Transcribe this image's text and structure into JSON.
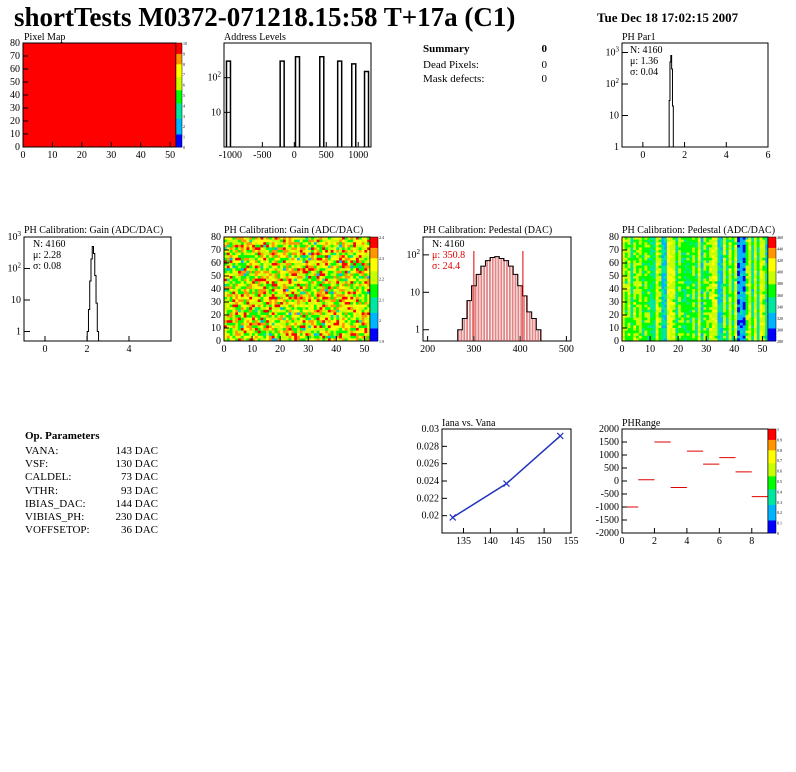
{
  "header": {
    "title": "shortTests M0372-071218.15:58 T+17a (C1)",
    "timestamp": "Tue Dec 18 17:02:15 2007"
  },
  "summary": {
    "label": "Summary",
    "value": "0",
    "rows": [
      {
        "label": "Dead Pixels:",
        "value": "0"
      },
      {
        "label": "Mask defects:",
        "value": "0"
      }
    ]
  },
  "op_parameters": {
    "title": "Op. Parameters",
    "rows": [
      {
        "label": "VANA:",
        "value": "143 DAC"
      },
      {
        "label": "VSF:",
        "value": "130 DAC"
      },
      {
        "label": "CALDEL:",
        "value": "73 DAC"
      },
      {
        "label": "VTHR:",
        "value": "93 DAC"
      },
      {
        "label": "IBIAS_DAC:",
        "value": "144 DAC"
      },
      {
        "label": "VIBIAS_PH:",
        "value": "230 DAC"
      },
      {
        "label": "VOFFSETOP:",
        "value": "36 DAC"
      }
    ]
  },
  "colors": {
    "histogram_line": "#000000",
    "fit_red": "#e00000",
    "iana_line": "#2233bb",
    "pixel_map_fill": "#ff0000"
  },
  "chart_data": [
    {
      "id": "pixel-map",
      "type": "heatmap",
      "title": "Pixel Map",
      "xlim": [
        0,
        52
      ],
      "ylim": [
        0,
        80
      ],
      "xticks": [
        "0",
        "10",
        "20",
        "30",
        "40",
        "50"
      ],
      "yticks": [
        "0",
        "10",
        "20",
        "30",
        "40",
        "50",
        "60",
        "70",
        "80"
      ],
      "zticks": [
        "0",
        "1",
        "2",
        "3",
        "4",
        "5",
        "6",
        "7",
        "8",
        "9",
        "10"
      ],
      "uniform_value": 10
    },
    {
      "id": "address-levels",
      "type": "bar",
      "title": "Address Levels",
      "xlim": [
        -1100,
        1200
      ],
      "log_y": true,
      "ylim": [
        1,
        1000
      ],
      "xticks": [
        "-1000",
        "-500",
        "0",
        "500",
        "1000"
      ],
      "yticks": [
        "10",
        "10^2"
      ],
      "peaks": [
        {
          "x": -1030,
          "value": 300
        },
        {
          "x": -190,
          "value": 300
        },
        {
          "x": 50,
          "value": 400
        },
        {
          "x": 430,
          "value": 400
        },
        {
          "x": 710,
          "value": 300
        },
        {
          "x": 930,
          "value": 250
        },
        {
          "x": 1130,
          "value": 150
        }
      ]
    },
    {
      "id": "ph-par1",
      "type": "bar",
      "title": "PH Par1",
      "xlim": [
        -1,
        6
      ],
      "log_y": true,
      "ylim": [
        1,
        2000
      ],
      "xticks": [
        "0",
        "2",
        "4",
        "6"
      ],
      "yticks": [
        "1",
        "10",
        "10^2",
        "10^3"
      ],
      "stats": {
        "entries": "N: 4160",
        "mean": "μ: 1.36",
        "sigma": "σ: 0.04"
      },
      "x": [
        1.24,
        1.28,
        1.32,
        1.36,
        1.4,
        1.44,
        1.48
      ],
      "values": [
        1,
        30,
        500,
        800,
        300,
        20,
        1
      ]
    },
    {
      "id": "gain-1d",
      "type": "bar",
      "title": "PH Calibration: Gain (ADC/DAC)",
      "xlim": [
        -1,
        6
      ],
      "log_y": true,
      "ylim": [
        0.5,
        1000
      ],
      "xticks": [
        "0",
        "2",
        "4"
      ],
      "yticks": [
        "1",
        "10",
        "10^2",
        "10^3"
      ],
      "stats": {
        "entries": "N: 4160",
        "mean": "μ: 2.28",
        "sigma": "σ: 0.08"
      },
      "x": [
        2.04,
        2.1,
        2.16,
        2.22,
        2.28,
        2.34,
        2.4,
        2.46,
        2.52
      ],
      "values": [
        1,
        5,
        40,
        200,
        500,
        300,
        60,
        8,
        1
      ]
    },
    {
      "id": "gain-2d",
      "type": "heatmap",
      "title": "PH Calibration: Gain (ADC/DAC)",
      "xlim": [
        0,
        52
      ],
      "ylim": [
        0,
        80
      ],
      "xticks": [
        "0",
        "10",
        "20",
        "30",
        "40",
        "50"
      ],
      "yticks": [
        "0",
        "10",
        "20",
        "30",
        "40",
        "50",
        "60",
        "70",
        "80"
      ],
      "zticks": [
        "1.9",
        "2",
        "2.1",
        "2.2",
        "2.3",
        "2.4"
      ],
      "zlim": [
        1.9,
        2.45
      ]
    },
    {
      "id": "pedestal-1d",
      "type": "bar",
      "title": "PH Calibration: Pedestal (DAC)",
      "xlim": [
        190,
        510
      ],
      "log_y": true,
      "ylim": [
        0.5,
        300
      ],
      "xticks": [
        "200",
        "300",
        "400",
        "500"
      ],
      "yticks": [
        "1",
        "10",
        "10^2"
      ],
      "stats": {
        "entries": "N: 4160",
        "mean": "μ: 350.8",
        "sigma": "σ: 24.4"
      },
      "fit_lines": [
        300,
        406
      ],
      "x": [
        270,
        280,
        290,
        300,
        310,
        320,
        330,
        340,
        350,
        360,
        370,
        380,
        390,
        400,
        410,
        420,
        430,
        440
      ],
      "values": [
        1,
        2,
        6,
        15,
        30,
        50,
        70,
        85,
        90,
        80,
        70,
        50,
        30,
        15,
        8,
        3,
        2,
        1
      ]
    },
    {
      "id": "pedestal-2d",
      "type": "heatmap",
      "title": "PH Calibration: Pedestal (ADC/DAC)",
      "xlim": [
        0,
        52
      ],
      "ylim": [
        0,
        80
      ],
      "xticks": [
        "0",
        "10",
        "20",
        "30",
        "40",
        "50"
      ],
      "yticks": [
        "0",
        "10",
        "20",
        "30",
        "40",
        "50",
        "60",
        "70",
        "80"
      ],
      "zticks": [
        "280",
        "300",
        "320",
        "340",
        "360",
        "380",
        "400",
        "420",
        "440",
        "460"
      ],
      "zlim": [
        270,
        470
      ]
    },
    {
      "id": "iana-vs-vana",
      "type": "line",
      "title": "Iana vs. Vana",
      "xlim": [
        131,
        155
      ],
      "ylim": [
        0.018,
        0.03
      ],
      "xticks": [
        "135",
        "140",
        "145",
        "150",
        "155"
      ],
      "yticks": [
        "0.02",
        "0.022",
        "0.024",
        "0.026",
        "0.028",
        "0.03"
      ],
      "x": [
        133,
        143,
        153
      ],
      "y": [
        0.0198,
        0.0237,
        0.0292
      ]
    },
    {
      "id": "ph-range",
      "type": "scatter",
      "title": "PHRange",
      "xlim": [
        0,
        9
      ],
      "ylim": [
        -2000,
        2000
      ],
      "xticks": [
        "0",
        "2",
        "4",
        "6",
        "8"
      ],
      "yticks": [
        "-2000",
        "-1500",
        "-1000",
        "-500",
        "0",
        "500",
        "1000",
        "1500",
        "2000"
      ],
      "zticks": [
        "0",
        "0.1",
        "0.2",
        "0.3",
        "0.4",
        "0.5",
        "0.6",
        "0.7",
        "0.8",
        "0.9",
        "1"
      ],
      "x": [
        0.5,
        1.5,
        2.5,
        3.5,
        4.5,
        5.5,
        6.5,
        7.5,
        8.5
      ],
      "y": [
        -1000,
        50,
        1500,
        -250,
        1150,
        650,
        900,
        350,
        -600
      ]
    }
  ]
}
